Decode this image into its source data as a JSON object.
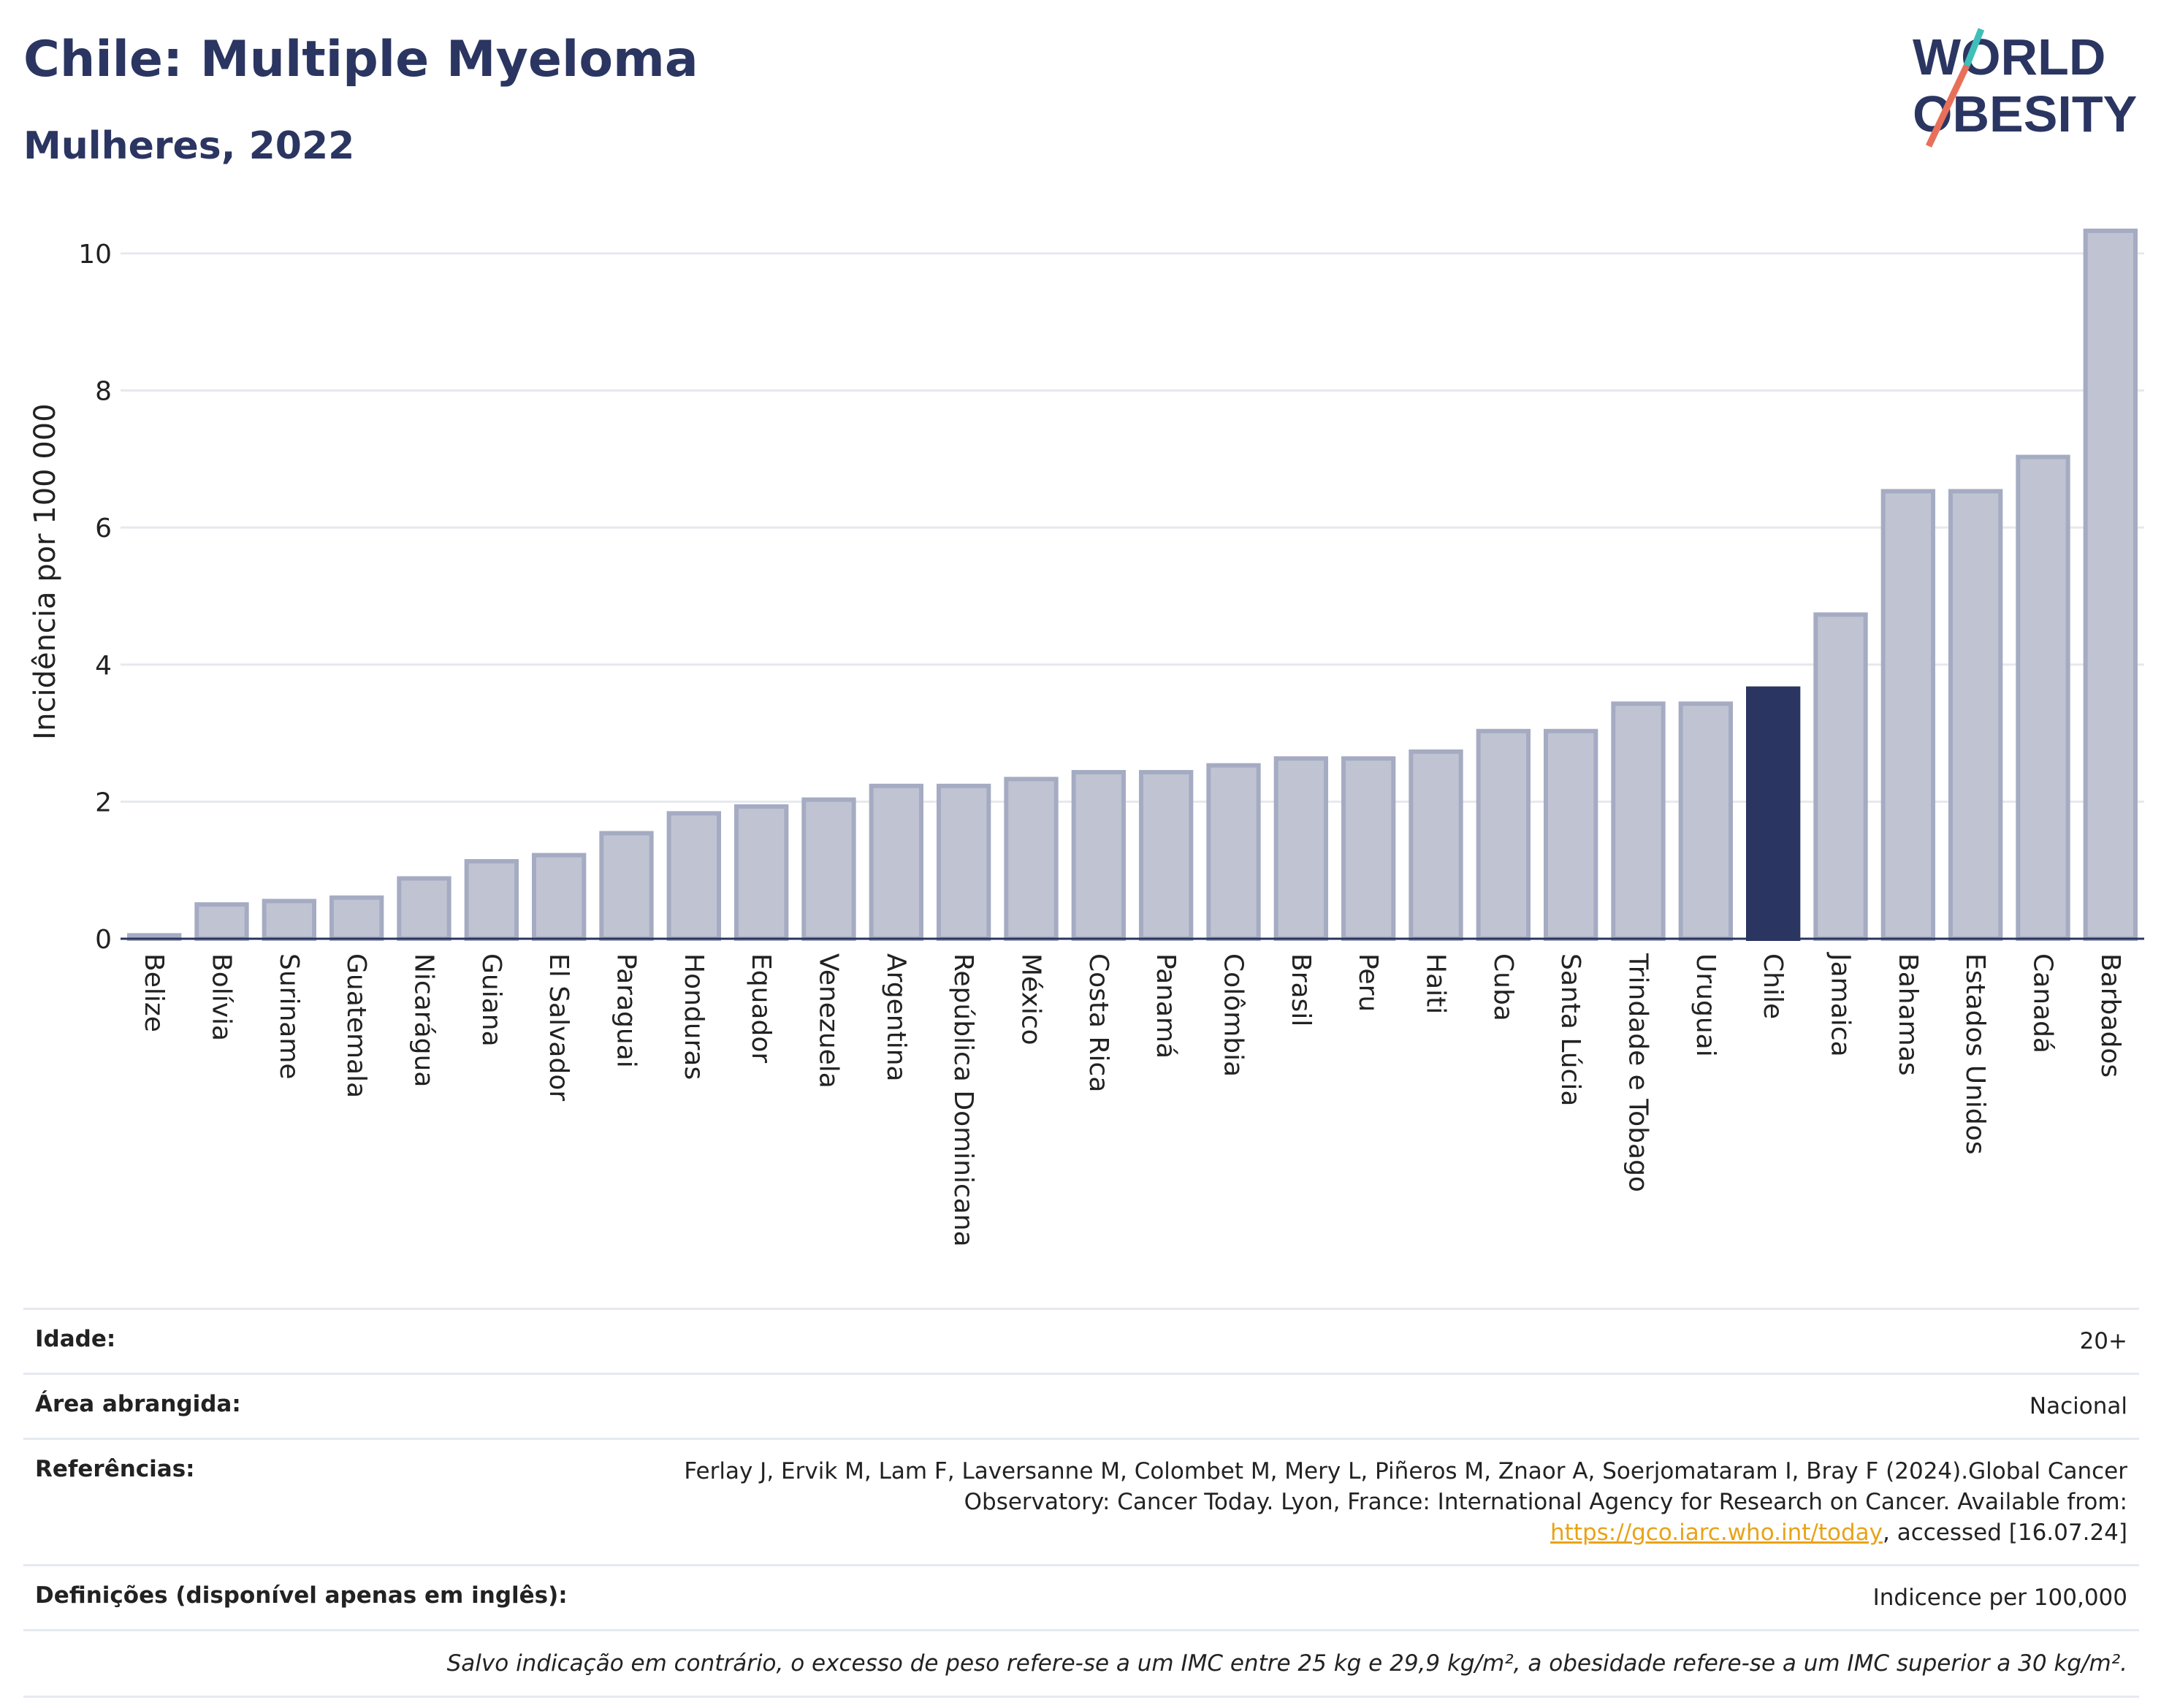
{
  "header": {
    "title": "Chile: Multiple Myeloma",
    "subtitle": "Mulheres, 2022"
  },
  "logo": {
    "line1": "WORLD",
    "line2": "OBESITY"
  },
  "colors": {
    "bar": "#c0c4d2",
    "bar_border": "#a5abc2",
    "highlight": "#2b3561",
    "grid": "#e6e8ef",
    "text": "#2b3561"
  },
  "chart_data": {
    "type": "bar",
    "ylabel": "Incidência por 100 000",
    "xlabel": "",
    "ylim": [
      0,
      10.5
    ],
    "yticks": [
      0,
      2,
      4,
      6,
      8,
      10
    ],
    "grid": true,
    "highlight": "Chile",
    "categories": [
      "Belize",
      "Bolívia",
      "Suriname",
      "Guatemala",
      "Nicarágua",
      "Guiana",
      "El Salvador",
      "Paraguai",
      "Honduras",
      "Equador",
      "Venezuela",
      "Argentina",
      "República Dominicana",
      "México",
      "Costa Rica",
      "Panamá",
      "Colômbia",
      "Brasil",
      "Peru",
      "Haiti",
      "Cuba",
      "Santa Lúcia",
      "Trindade e Tobago",
      "Uruguai",
      "Chile",
      "Jamaica",
      "Bahamas",
      "Estados Unidos",
      "Canadá",
      "Barbados"
    ],
    "values": [
      0.05,
      0.5,
      0.55,
      0.6,
      0.88,
      1.13,
      1.22,
      1.54,
      1.83,
      1.93,
      2.03,
      2.23,
      2.23,
      2.33,
      2.43,
      2.43,
      2.53,
      2.63,
      2.63,
      2.73,
      3.03,
      3.03,
      3.43,
      3.43,
      3.65,
      4.73,
      6.53,
      6.53,
      7.03,
      10.33
    ]
  },
  "info": {
    "age_label": "Idade:",
    "age_value": "20+",
    "area_label": "Área abrangida:",
    "area_value": "Nacional",
    "refs_label": "Referências:",
    "refs_text": "Ferlay J, Ervik M, Lam F, Laversanne M, Colombet M, Mery L, Piñeros M, Znaor A, Soerjomataram I, Bray F (2024).Global Cancer Observatory: Cancer Today. Lyon, France: International Agency for Research on Cancer. Available from:",
    "refs_link": "https://gco.iarc.who.int/today",
    "refs_tail": ", accessed [16.07.24]",
    "defs_label": "Definições (disponível apenas em inglês):",
    "defs_value": "Indicence per 100,000",
    "note": "Salvo indicação em contrário, o excesso de peso refere-se a um IMC entre 25 kg e 29,9 kg/m², a obesidade refere-se a um IMC superior a 30 kg/m²."
  }
}
